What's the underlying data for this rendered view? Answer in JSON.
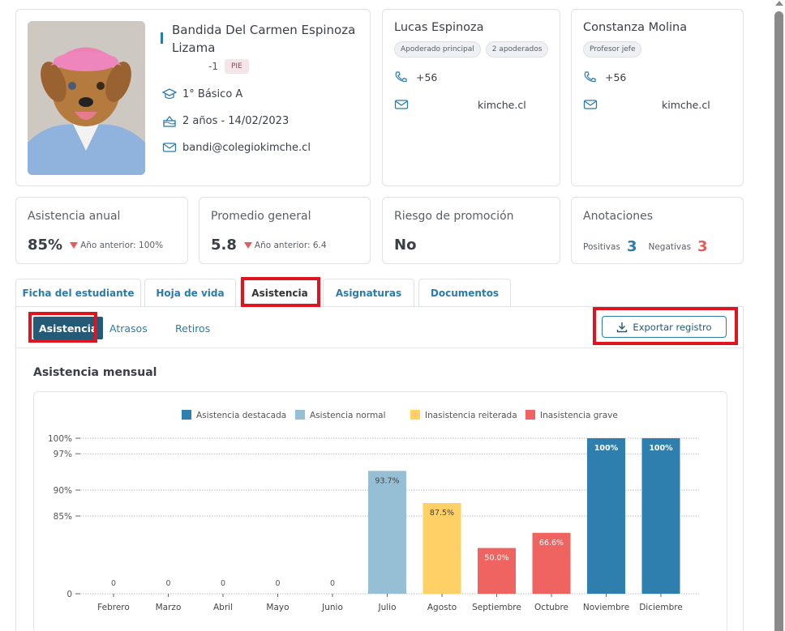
{
  "student": {
    "name": "Bandida Del Carmen Espinoza Lizama",
    "id_suffix": "-1",
    "badge": "PIE",
    "course": "1° Básico A",
    "age_birth": "2 años - 14/02/2023",
    "email": "bandi@colegiokimche.cl",
    "photo_alt": "Student photo: puppy in pink cap and blue gingham shirt"
  },
  "guardian": {
    "name": "Lucas Espinoza",
    "chips": [
      "Apoderado principal",
      "2 apoderados"
    ],
    "phone": "+56",
    "email": "kimche.cl"
  },
  "teacher": {
    "name": "Constanza Molina",
    "chips": [
      "Profesor jefe"
    ],
    "phone": "+56",
    "email": "kimche.cl"
  },
  "stats": {
    "attendance": {
      "title": "Asistencia anual",
      "value": "85%",
      "previous": "Año anterior: 100%"
    },
    "average": {
      "title": "Promedio general",
      "value": "5.8",
      "previous": "Año anterior: 6.4"
    },
    "risk": {
      "title": "Riesgo de promoción",
      "value": "No"
    },
    "annotations": {
      "title": "Anotaciones",
      "positive_label": "Positivas",
      "positive": "3",
      "negative_label": "Negativas",
      "negative": "3"
    }
  },
  "tabs": [
    "Ficha del estudiante",
    "Hoja de vida",
    "Asistencia",
    "Asignaturas",
    "Documentos"
  ],
  "active_tab": "Asistencia",
  "subtabs": [
    "Asistencia",
    "Atrasos",
    "Retiros"
  ],
  "export_label": "Exportar registro",
  "section_title": "Asistencia mensual",
  "colors": {
    "destacada": "#2e7fad",
    "normal": "#96bfd6",
    "reiterada": "#fed066",
    "grave": "#ef6461",
    "accent": "#2b7bab",
    "highlight": "#e0141e"
  },
  "chart_data": {
    "type": "bar",
    "title": "Asistencia mensual",
    "legend": [
      {
        "name": "Asistencia destacada",
        "key": "destacada"
      },
      {
        "name": "Asistencia normal",
        "key": "normal"
      },
      {
        "name": "Inasistencia reiterada",
        "key": "reiterada"
      },
      {
        "name": "Inasistencia grave",
        "key": "grave"
      }
    ],
    "legend_position": "top-center",
    "categories": [
      "Febrero",
      "Marzo",
      "Abril",
      "Mayo",
      "Junio",
      "Julio",
      "Agosto",
      "Septiembre",
      "Octubre",
      "Noviembre",
      "Diciembre"
    ],
    "values": [
      0,
      0,
      0,
      0,
      0,
      93.7,
      87.5,
      50.0,
      66.6,
      100,
      100
    ],
    "labels": [
      "0",
      "0",
      "0",
      "0",
      "0",
      "93.7%",
      "87.5%",
      "50.0%",
      "66.6%",
      "100%",
      "100%"
    ],
    "status": [
      "none",
      "none",
      "none",
      "none",
      "none",
      "normal",
      "reiterada",
      "grave",
      "grave",
      "destacada",
      "destacada"
    ],
    "yticks": [
      0,
      85,
      90,
      97,
      100
    ],
    "ytick_labels": [
      "0",
      "85%",
      "90%",
      "97%",
      "100%"
    ],
    "ylim": [
      0,
      100
    ],
    "grid": true
  }
}
